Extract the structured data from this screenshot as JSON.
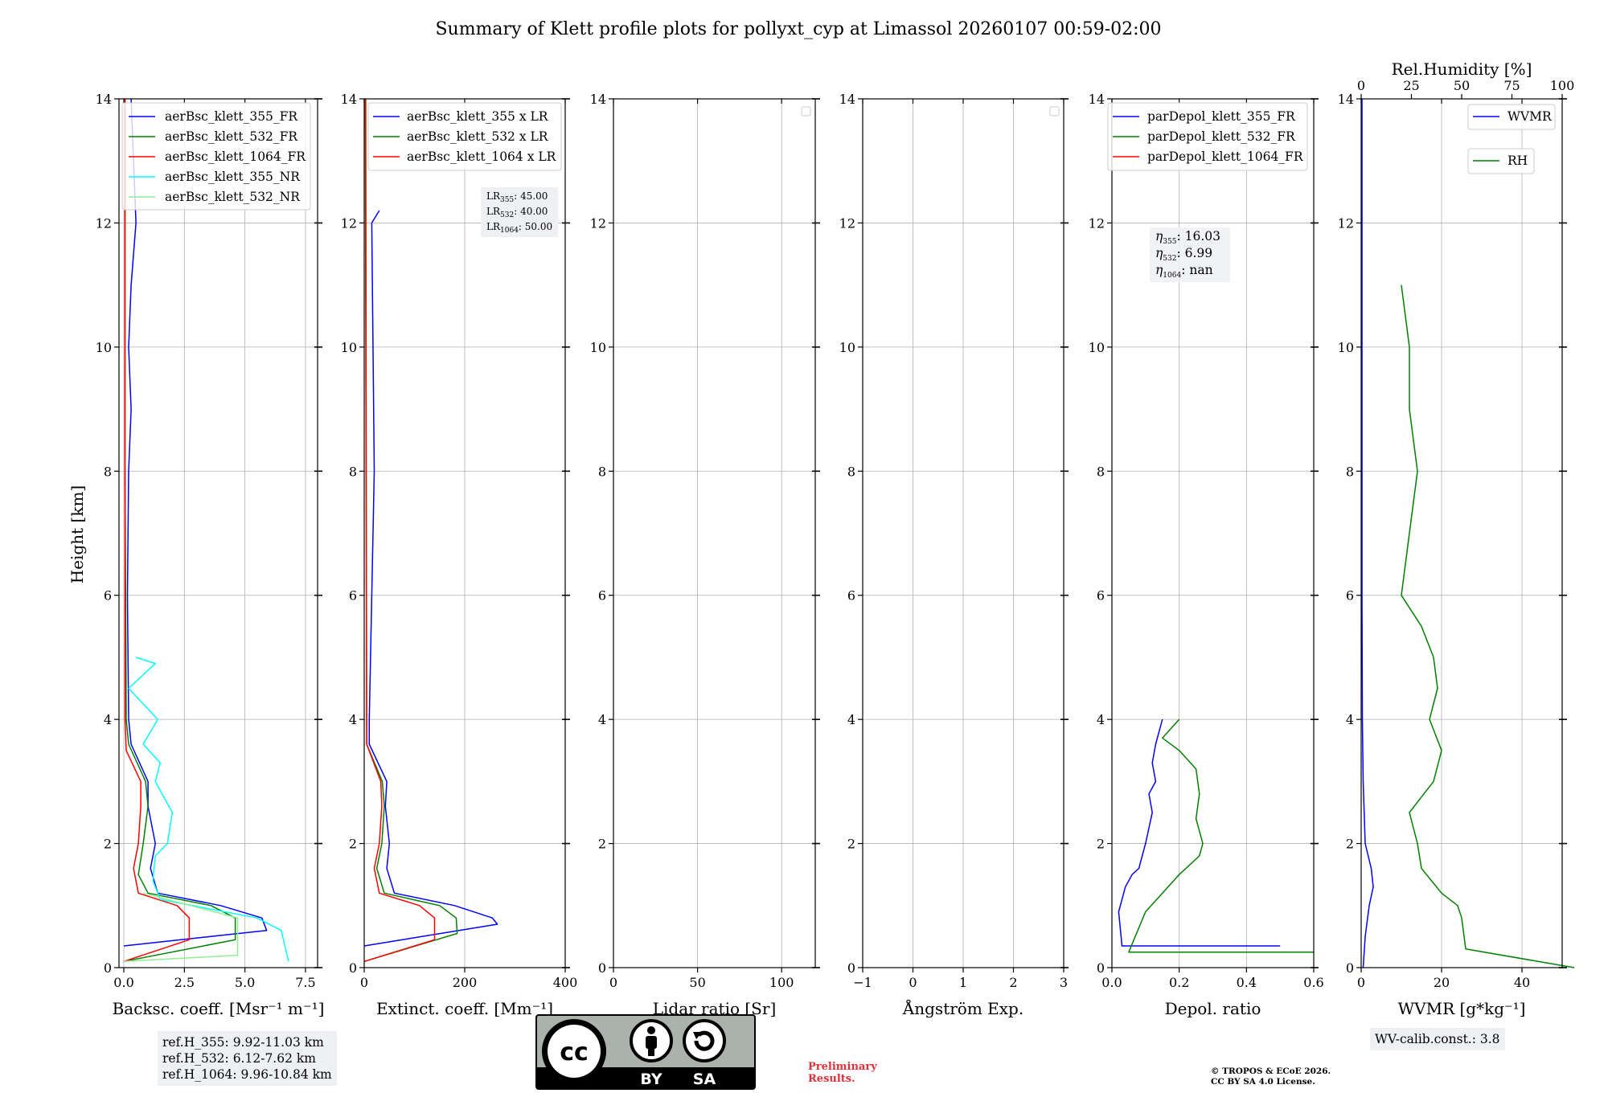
{
  "title": "Summary of Klett profile plots for pollyxt_cyp at Limassol 20260107 00:59-02:00",
  "y_axis_label": "Height [km]",
  "colors": {
    "blue": "#0000ff",
    "green": "#008000",
    "red": "#ff0000",
    "cyan": "#00ffff",
    "lightgreen": "#90ee90",
    "grid": "#b0b0b0"
  },
  "panels": [
    {
      "id": "backscatter",
      "xlabel": "Backsc. coeff. [Msr⁻¹ m⁻¹]",
      "xticks": [
        "0.0",
        "2.5",
        "5.0",
        "7.5"
      ],
      "xlim": [
        -0.2,
        8.0
      ],
      "legend": [
        "aerBsc_klett_355_FR",
        "aerBsc_klett_532_FR",
        "aerBsc_klett_1064_FR",
        "aerBsc_klett_355_NR",
        "aerBsc_klett_532_NR"
      ]
    },
    {
      "id": "extinction",
      "xlabel": "Extinct. coeff. [Mm⁻¹]",
      "xticks": [
        "0",
        "200",
        "400"
      ],
      "xlim": [
        0,
        400
      ],
      "legend": [
        "aerBsc_klett_355 x LR",
        "aerBsc_klett_532 x LR",
        "aerBsc_klett_1064 x LR"
      ]
    },
    {
      "id": "lidar_ratio",
      "xlabel": "Lidar ratio [Sr]",
      "xticks": [
        "0",
        "50",
        "100"
      ],
      "xlim": [
        0,
        120
      ]
    },
    {
      "id": "angstrom",
      "xlabel": "Ångström Exp.",
      "xticks": [
        "−1",
        "0",
        "1",
        "2",
        "3"
      ],
      "xlim": [
        -1,
        3
      ]
    },
    {
      "id": "depol",
      "xlabel": "Depol. ratio",
      "xticks": [
        "0.0",
        "0.2",
        "0.4",
        "0.6"
      ],
      "xlim": [
        0,
        0.6
      ],
      "legend": [
        "parDepol_klett_355_FR",
        "parDepol_klett_532_FR",
        "parDepol_klett_1064_FR"
      ]
    },
    {
      "id": "wvmr",
      "xlabel": "WVMR [g*kg⁻¹]",
      "xticks": [
        "0",
        "20",
        "40"
      ],
      "xlim": [
        0,
        50
      ],
      "top_label": "Rel.Humidity [%]",
      "top_ticks": [
        "0",
        "25",
        "50",
        "75",
        "100"
      ],
      "legend": [
        "WVMR",
        "RH"
      ]
    }
  ],
  "y_ticks": [
    "0",
    "2",
    "4",
    "6",
    "8",
    "10",
    "12",
    "14"
  ],
  "lr_box": {
    "lr355": "45.00",
    "lr532": "40.00",
    "lr1064": "50.00"
  },
  "depol_box": {
    "eta355": "16.03",
    "eta532": "6.99",
    "eta1064": "nan"
  },
  "ref_heights": {
    "line1": "ref.H_355: 9.92-11.03 km",
    "line2": "ref.H_532: 6.12-7.62 km",
    "line3": "ref.H_1064: 9.96-10.84 km"
  },
  "wv_calib": "WV-calib.const.: 3.8",
  "preliminary": {
    "line1": "Preliminary",
    "line2": "Results."
  },
  "copyright": {
    "line1": "© TROPOS & ECoE 2026.",
    "line2": "CC BY SA 4.0 License."
  },
  "cc_badge": {
    "label_by": "BY",
    "label_sa": "SA",
    "logo": "cc-icon"
  },
  "chart_data": [
    {
      "type": "line",
      "title": "",
      "xlabel": "Backsc. coeff. [Msr-1 m-1]",
      "ylabel": "Height [km]",
      "xlim": [
        -0.2,
        8.0
      ],
      "ylim": [
        0,
        14
      ],
      "series": [
        {
          "name": "aerBsc_klett_355_FR",
          "x": [
            0,
            5.9,
            5.7,
            4.0,
            1.4,
            1.1,
            1.3,
            1.0,
            1.0,
            0.3,
            0.2,
            0.15,
            0.2,
            0.3,
            0.2,
            0.3,
            0.5,
            0.3
          ],
          "y": [
            0.35,
            0.6,
            0.8,
            1.0,
            1.2,
            1.6,
            2.0,
            2.6,
            3.0,
            3.6,
            4.0,
            6.0,
            8.0,
            9.0,
            10.0,
            11.0,
            12.0,
            14.0
          ]
        },
        {
          "name": "aerBsc_klett_532_FR",
          "x": [
            0,
            4.6,
            4.6,
            3.6,
            1.0,
            0.6,
            0.8,
            1.0,
            0.9,
            0.2,
            0.1,
            0.05,
            0.05
          ],
          "y": [
            0.1,
            0.45,
            0.8,
            1.0,
            1.2,
            1.5,
            2.0,
            2.6,
            3.0,
            3.6,
            4.0,
            8.0,
            14.0
          ]
        },
        {
          "name": "aerBsc_klett_1064_FR",
          "x": [
            0,
            2.7,
            2.7,
            2.2,
            0.6,
            0.4,
            0.6,
            0.7,
            0.7,
            0.1,
            0.05,
            0.05
          ],
          "y": [
            0.1,
            0.45,
            0.8,
            1.0,
            1.2,
            1.6,
            2.0,
            2.6,
            3.0,
            3.5,
            4.0,
            14.0
          ]
        },
        {
          "name": "aerBsc_klett_355_NR",
          "x": [
            6.8,
            6.5,
            5.5,
            1.5,
            1.2,
            1.3,
            1.8,
            2.0,
            1.3,
            1.5,
            0.8,
            1.4,
            0.2,
            1.3,
            0.5
          ],
          "y": [
            0.1,
            0.6,
            0.8,
            1.1,
            1.4,
            1.8,
            2.0,
            2.5,
            3.0,
            3.3,
            3.6,
            4.0,
            4.5,
            4.9,
            5.0
          ]
        },
        {
          "name": "aerBsc_klett_532_NR",
          "x": [
            0,
            4.7,
            4.7,
            0.8
          ],
          "y": [
            0.1,
            0.2,
            0.8,
            1.2
          ]
        }
      ]
    },
    {
      "type": "line",
      "title": "",
      "xlabel": "Extinct. coeff. [Mm-1]",
      "ylabel": "Height [km]",
      "xlim": [
        0,
        400
      ],
      "ylim": [
        0,
        14
      ],
      "series": [
        {
          "name": "aerBsc_klett_355 x LR",
          "x": [
            0,
            265,
            255,
            180,
            60,
            45,
            50,
            42,
            45,
            10,
            10,
            20,
            15,
            30
          ],
          "y": [
            0.35,
            0.7,
            0.8,
            1.0,
            1.2,
            1.6,
            2.0,
            2.6,
            3.0,
            3.6,
            4.0,
            8.0,
            12.0,
            12.2
          ]
        },
        {
          "name": "aerBsc_klett_532 x LR",
          "x": [
            0,
            185,
            183,
            150,
            40,
            25,
            35,
            40,
            36,
            5,
            3
          ],
          "y": [
            0.1,
            0.55,
            0.8,
            1.0,
            1.2,
            1.6,
            2.0,
            2.6,
            3.0,
            3.6,
            14.0
          ]
        },
        {
          "name": "aerBsc_klett_1064 x LR",
          "x": [
            0,
            140,
            140,
            110,
            30,
            20,
            30,
            35,
            33,
            5,
            2
          ],
          "y": [
            0.1,
            0.45,
            0.8,
            1.0,
            1.2,
            1.6,
            2.0,
            2.6,
            3.0,
            3.6,
            14.0
          ]
        }
      ]
    },
    {
      "type": "line",
      "title": "",
      "xlabel": "Lidar ratio [Sr]",
      "ylabel": "Height [km]",
      "xlim": [
        0,
        120
      ],
      "ylim": [
        0,
        14
      ],
      "series": []
    },
    {
      "type": "line",
      "title": "",
      "xlabel": "Angstrom Exp.",
      "ylabel": "Height [km]",
      "xlim": [
        -1,
        3
      ],
      "ylim": [
        0,
        14
      ],
      "series": []
    },
    {
      "type": "line",
      "title": "",
      "xlabel": "Depol. ratio",
      "ylabel": "Height [km]",
      "xlim": [
        0,
        0.6
      ],
      "ylim": [
        0,
        14
      ],
      "series": [
        {
          "name": "parDepol_klett_355_FR",
          "x": [
            0.5,
            0.03,
            0.02,
            0.04,
            0.06,
            0.08,
            0.1,
            0.12,
            0.11,
            0.13,
            0.12,
            0.13,
            0.15
          ],
          "y": [
            0.35,
            0.35,
            0.9,
            1.3,
            1.5,
            1.6,
            2.0,
            2.5,
            2.8,
            3.0,
            3.3,
            3.6,
            4.0
          ]
        },
        {
          "name": "parDepol_klett_532_FR",
          "x": [
            0.6,
            0.05,
            0.1,
            0.2,
            0.26,
            0.27,
            0.25,
            0.26,
            0.25,
            0.2,
            0.15,
            0.2
          ],
          "y": [
            0.25,
            0.25,
            0.9,
            1.5,
            1.8,
            2.0,
            2.4,
            2.8,
            3.2,
            3.5,
            3.7,
            4.0
          ]
        }
      ]
    },
    {
      "type": "line",
      "title": "",
      "xlabel": "WVMR [g*kg-1]",
      "ylabel": "Height [km]",
      "xlim": [
        0,
        50
      ],
      "ylim": [
        0,
        14
      ],
      "x2label": "Rel.Humidity [%]",
      "x2lim": [
        0,
        100
      ],
      "series": [
        {
          "name": "WVMR",
          "x": [
            0.5,
            1,
            2,
            3,
            2.5,
            1,
            0.5,
            0.3,
            0.2,
            0.2
          ],
          "y": [
            0,
            0.5,
            1.0,
            1.3,
            1.6,
            2.0,
            3.0,
            4.0,
            6.0,
            14.0
          ]
        },
        {
          "name": "RH",
          "x": [
            53,
            26,
            25,
            24,
            20,
            15,
            14,
            12,
            18,
            20,
            17,
            19,
            18,
            15,
            10,
            12,
            14,
            12,
            12,
            10
          ],
          "y": [
            0,
            0.3,
            0.8,
            1.0,
            1.2,
            1.6,
            2.0,
            2.5,
            3.0,
            3.5,
            4.0,
            4.5,
            5.0,
            5.5,
            6.0,
            7.0,
            8.0,
            9.0,
            10.0,
            11.0
          ]
        }
      ]
    }
  ]
}
